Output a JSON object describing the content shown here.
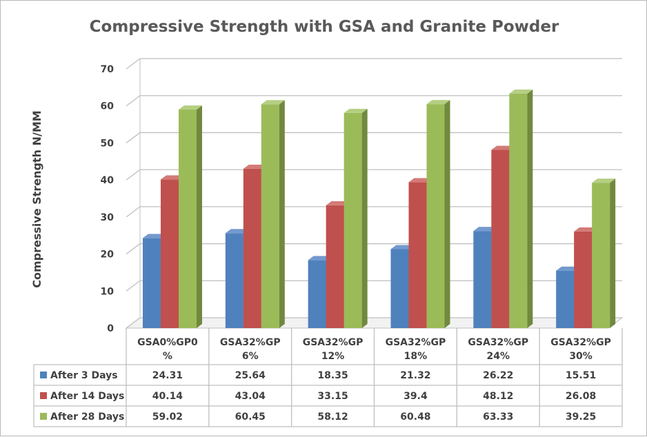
{
  "chart_data": {
    "type": "bar",
    "title": "Compressive Strength with GSA and Granite Powder",
    "xlabel": "",
    "ylabel": "Compressive Strength N/MM",
    "ylim": [
      0,
      70
    ],
    "yticks": [
      0,
      10,
      20,
      30,
      40,
      50,
      60,
      70
    ],
    "grid": true,
    "legend": "data-table-bottom",
    "categories": [
      [
        "GSA0%GP0",
        "%"
      ],
      [
        "GSA32%GP",
        "6%"
      ],
      [
        "GSA32%GP",
        "12%"
      ],
      [
        "GSA32%GP",
        "18%"
      ],
      [
        "GSA32%GP",
        "24%"
      ],
      [
        "GSA32%GP",
        "30%"
      ]
    ],
    "series": [
      {
        "name": "After 3 Days",
        "color": "#4F81BD",
        "side": "#385D8A",
        "top": "#7399CE",
        "values": [
          24.31,
          25.64,
          18.35,
          21.32,
          26.22,
          15.51
        ],
        "labels": [
          "24.31",
          "25.64",
          "18.35",
          "21.32",
          "26.22",
          "15.51"
        ]
      },
      {
        "name": "After 14 Days",
        "color": "#C0504D",
        "side": "#8C3836",
        "top": "#D37A77",
        "values": [
          40.14,
          43.04,
          33.15,
          39.4,
          48.12,
          26.08
        ],
        "labels": [
          "40.14",
          "43.04",
          "33.15",
          "39.4",
          "48.12",
          "26.08"
        ]
      },
      {
        "name": "After 28 Days",
        "color": "#9BBB59",
        "side": "#71893F",
        "top": "#B5CF82",
        "values": [
          59.02,
          60.45,
          58.12,
          60.48,
          63.33,
          39.25
        ],
        "labels": [
          "59.02",
          "60.45",
          "58.12",
          "60.48",
          "63.33",
          "39.25"
        ]
      }
    ]
  }
}
